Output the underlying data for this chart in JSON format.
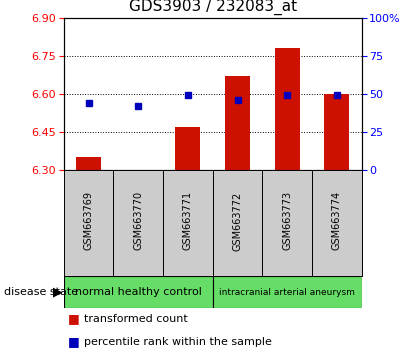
{
  "title": "GDS3903 / 232083_at",
  "samples": [
    "GSM663769",
    "GSM663770",
    "GSM663771",
    "GSM663772",
    "GSM663773",
    "GSM663774"
  ],
  "transformed_count": [
    6.35,
    6.3,
    6.47,
    6.67,
    6.78,
    6.6
  ],
  "percentile_rank": [
    44,
    42,
    49,
    46,
    49,
    49
  ],
  "ylim_left": [
    6.3,
    6.9
  ],
  "ylim_right": [
    0,
    100
  ],
  "yticks_left": [
    6.3,
    6.45,
    6.6,
    6.75,
    6.9
  ],
  "yticks_right": [
    0,
    25,
    50,
    75,
    100
  ],
  "ytick_labels_right": [
    "0",
    "25",
    "50",
    "75",
    "100%"
  ],
  "bar_color": "#cc1100",
  "dot_color": "#0000bb",
  "grid_lines": [
    6.45,
    6.6,
    6.75
  ],
  "group1_label": "normal healthy control",
  "group2_label": "intracranial arterial aneurysm",
  "group_color": "#66dd66",
  "sample_box_color": "#cccccc",
  "disease_state_label": "disease state",
  "legend_entries": [
    "transformed count",
    "percentile rank within the sample"
  ],
  "bar_bottom": 6.3,
  "title_fontsize": 11,
  "tick_fontsize": 8,
  "sample_fontsize": 7,
  "group_fontsize": 8,
  "legend_fontsize": 8
}
